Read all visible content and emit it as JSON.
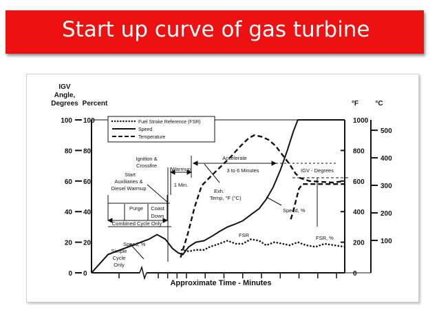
{
  "slide": {
    "title": "Start up curve of gas turbine"
  },
  "chart_data": {
    "type": "line",
    "xlabel": "Approximate Time - Minutes",
    "axes": {
      "igv": {
        "label_lines": [
          "IGV",
          "Angle,",
          "Degrees"
        ],
        "ticks": [
          0,
          20,
          40,
          60,
          80,
          100
        ],
        "range": [
          0,
          100
        ]
      },
      "percent": {
        "label": "Percent",
        "ticks": [
          0,
          20,
          40,
          60,
          80,
          100
        ],
        "range": [
          0,
          100
        ]
      },
      "fahrenheit": {
        "label": "°F",
        "ticks": [
          0,
          200,
          400,
          600,
          800,
          1000
        ],
        "range": [
          0,
          1000
        ]
      },
      "celsius": {
        "label": "°C",
        "ticks": [
          100,
          200,
          300,
          400,
          500
        ]
      }
    },
    "legend": {
      "position": "top-left",
      "entries": [
        {
          "label": "Fuel Stroke Reference (FSR)",
          "style": "dotted"
        },
        {
          "label": "Speed",
          "style": "solid"
        },
        {
          "label": "Temperature",
          "style": "dashed"
        }
      ]
    },
    "series": [
      {
        "name": "Speed",
        "axis": "percent",
        "style": "solid",
        "points": [
          [
            0,
            0
          ],
          [
            0.3,
            12
          ],
          [
            0.8,
            22
          ],
          [
            1.5,
            25
          ],
          [
            2.2,
            22
          ],
          [
            2.8,
            16
          ],
          [
            3.3,
            13
          ],
          [
            3.7,
            12
          ],
          [
            3.9,
            14
          ],
          [
            4.2,
            17
          ],
          [
            4.8,
            20
          ],
          [
            5.5,
            21
          ],
          [
            6.2,
            24
          ],
          [
            6.8,
            27
          ],
          [
            7.5,
            30
          ],
          [
            8.2,
            32
          ],
          [
            8.8,
            34
          ],
          [
            9.5,
            38
          ],
          [
            10.2,
            42
          ],
          [
            10.8,
            48
          ],
          [
            11.4,
            56
          ],
          [
            12.0,
            67
          ],
          [
            12.6,
            80
          ],
          [
            13.1,
            92
          ],
          [
            13.5,
            100
          ],
          [
            14.5,
            100
          ],
          [
            17.5,
            100
          ]
        ]
      },
      {
        "name": "Temperature",
        "axis": "fahrenheit",
        "style": "dashed",
        "points": [
          [
            3.5,
            100
          ],
          [
            4.1,
            250
          ],
          [
            4.7,
            430
          ],
          [
            5.3,
            570
          ],
          [
            6.2,
            640
          ],
          [
            7.0,
            700
          ],
          [
            7.8,
            760
          ],
          [
            8.5,
            820
          ],
          [
            9.3,
            880
          ],
          [
            9.8,
            900
          ],
          [
            10.4,
            890
          ],
          [
            11.0,
            870
          ],
          [
            11.6,
            830
          ],
          [
            12.2,
            770
          ],
          [
            12.8,
            710
          ],
          [
            13.3,
            650
          ],
          [
            13.7,
            620
          ],
          [
            14.5,
            600
          ],
          [
            15.5,
            595
          ],
          [
            16.5,
            590
          ],
          [
            17.5,
            600
          ]
        ]
      },
      {
        "name": "FSR",
        "axis": "percent",
        "style": "dotted",
        "points": [
          [
            3.6,
            15
          ],
          [
            4.2,
            14
          ],
          [
            4.8,
            15
          ],
          [
            5.5,
            15
          ],
          [
            6.0,
            17
          ],
          [
            6.8,
            19
          ],
          [
            7.5,
            21
          ],
          [
            8.2,
            19
          ],
          [
            8.8,
            19
          ],
          [
            9.5,
            22
          ],
          [
            10.2,
            21
          ],
          [
            10.8,
            18
          ],
          [
            11.5,
            20
          ],
          [
            12.2,
            19
          ],
          [
            12.8,
            18
          ],
          [
            13.5,
            20
          ],
          [
            14.2,
            18
          ],
          [
            15.0,
            17
          ],
          [
            15.8,
            19
          ],
          [
            16.6,
            18
          ],
          [
            17.5,
            17
          ]
        ]
      },
      {
        "name": "IGV - Degrees",
        "axis": "igv",
        "style": "dashed",
        "points": [
          [
            12.9,
            35
          ],
          [
            13.1,
            40
          ],
          [
            13.6,
            55
          ],
          [
            13.9,
            58
          ],
          [
            14.3,
            58
          ],
          [
            17.5,
            58
          ]
        ]
      }
    ],
    "annotations": {
      "ignition": [
        "Ignition &",
        "Crossfire"
      ],
      "start": [
        "Start",
        "Auxiliaries &",
        "Diesel Warmup"
      ],
      "purge": "Purge",
      "coast": [
        "Coast",
        "Down"
      ],
      "combined": "Combined Cycle Only",
      "warmup": "Warmup",
      "one_min": "1 Min.",
      "accelerate": "Accelerate",
      "accel_time": "3 to 6 Minutes",
      "igv_degrees": "IGV - Degrees",
      "exh": [
        "Exh.",
        "Temp, °F (°C)"
      ],
      "speed_pct": "Speed, %",
      "speed_pct_left": "Speed, %",
      "simple": [
        "Simple",
        "Cycle",
        "Only"
      ],
      "fsr": "FSR",
      "fsr_pct": "FSR, %"
    }
  }
}
